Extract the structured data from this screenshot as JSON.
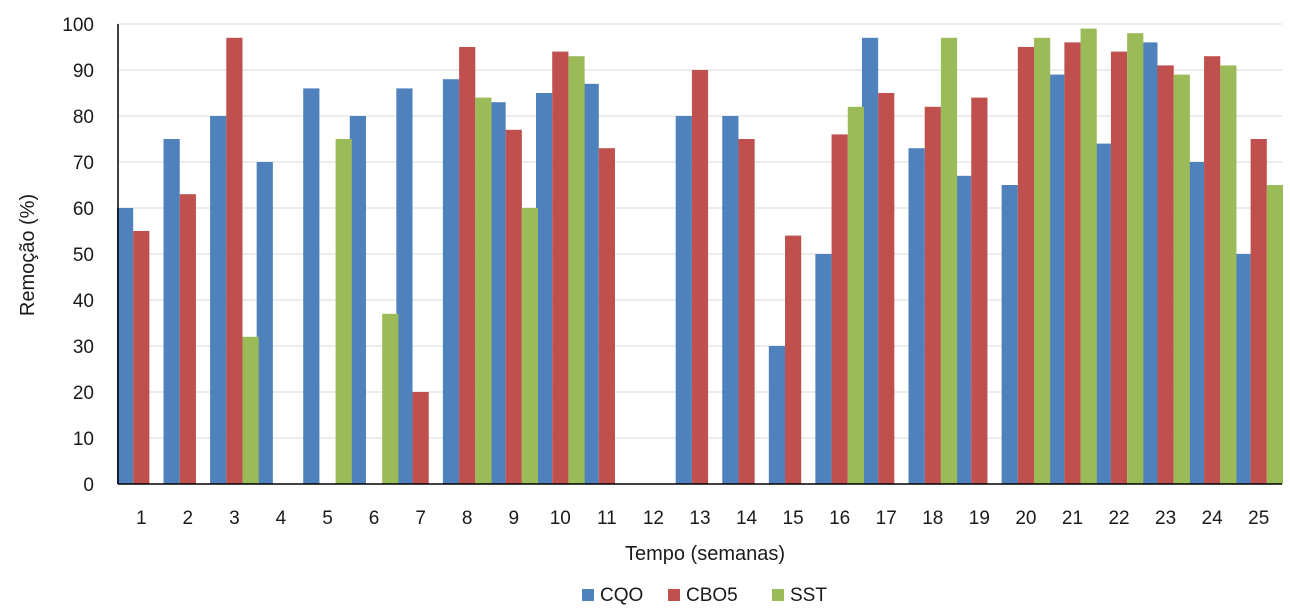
{
  "chart_data": {
    "type": "bar",
    "title": "",
    "xlabel": "Tempo (semanas)",
    "ylabel": "Remoção (%)",
    "ylim": [
      0,
      100
    ],
    "yticks": [
      0,
      10,
      20,
      30,
      40,
      50,
      60,
      70,
      80,
      90,
      100
    ],
    "grid": true,
    "legend_position": "bottom",
    "categories": [
      "1",
      "2",
      "3",
      "4",
      "5",
      "6",
      "7",
      "8",
      "9",
      "10",
      "11",
      "12",
      "13",
      "14",
      "15",
      "16",
      "17",
      "18",
      "19",
      "20",
      "21",
      "22",
      "23",
      "24",
      "25"
    ],
    "series": [
      {
        "name": "CQO",
        "color": "#4f81bd",
        "values": [
          60,
          75,
          80,
          70,
          86,
          80,
          86,
          88,
          83,
          85,
          87,
          null,
          80,
          80,
          30,
          50,
          97,
          73,
          67,
          65,
          89,
          74,
          96,
          70,
          50
        ]
      },
      {
        "name": "CBO5",
        "color": "#c0504d",
        "values": [
          55,
          63,
          97,
          null,
          null,
          null,
          20,
          95,
          77,
          94,
          73,
          null,
          90,
          75,
          54,
          76,
          85,
          82,
          84,
          95,
          96,
          94,
          91,
          93,
          75
        ]
      },
      {
        "name": "SST",
        "color": "#9bbb59",
        "values": [
          null,
          null,
          32,
          null,
          75,
          37,
          null,
          84,
          60,
          93,
          null,
          null,
          null,
          null,
          null,
          82,
          null,
          97,
          null,
          97,
          99,
          98,
          89,
          91,
          65
        ]
      }
    ]
  }
}
